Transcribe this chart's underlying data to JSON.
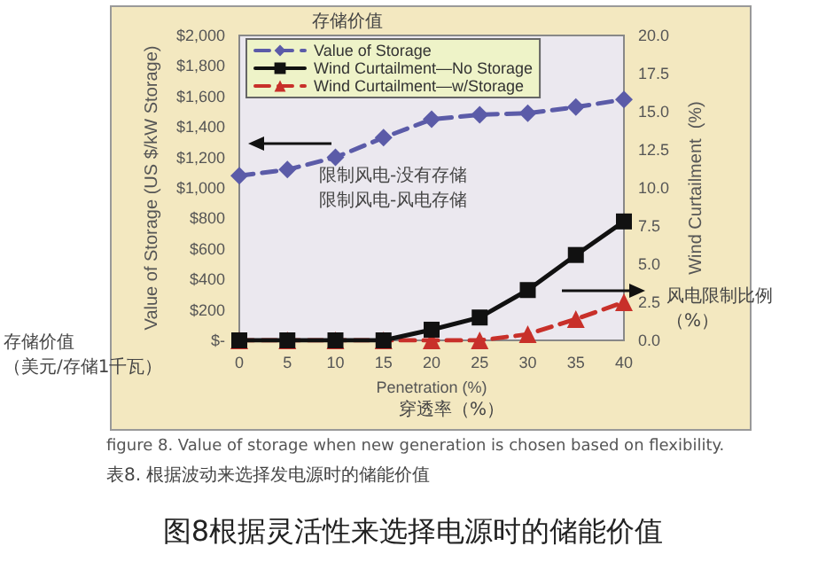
{
  "chart_data": {
    "type": "line",
    "xlabel": "Penetration (%)",
    "ylabel": "Value of Storage (US $/kW Storage)",
    "y2label": "Wind Curtailment  (%)",
    "x": [
      0,
      5,
      10,
      15,
      20,
      25,
      30,
      35,
      40
    ],
    "series": [
      {
        "name": "Value of Storage",
        "color": "#5b5ba8",
        "values": [
          1080,
          1120,
          1200,
          1330,
          1450,
          1480,
          1490,
          1530,
          1580
        ],
        "marker": "diamond",
        "line_style": "dashed"
      },
      {
        "name": "Wind Curtailment—No Storage",
        "color": "#111111",
        "values": [
          0,
          0,
          0,
          0,
          0.7,
          1.5,
          3.3,
          5.6,
          7.8
        ],
        "axis": "y2",
        "marker": "square",
        "line_style": "solid"
      },
      {
        "name": "Wind Curtailment—w/Storage",
        "color": "#c8302a",
        "values": [
          0,
          0,
          0,
          0,
          0,
          0,
          0.4,
          1.4,
          2.5
        ],
        "axis": "y2",
        "marker": "triangle",
        "line_style": "dashed"
      }
    ],
    "xlim": [
      0,
      40
    ],
    "xticks": [
      0,
      5,
      10,
      15,
      20,
      25,
      30,
      35,
      40
    ],
    "ylim": [
      0,
      2000
    ],
    "yticks": [
      {
        "value": 0,
        "label": "$-"
      },
      {
        "value": 200,
        "label": "$200"
      },
      {
        "value": 400,
        "label": "$400"
      },
      {
        "value": 600,
        "label": "$600"
      },
      {
        "value": 800,
        "label": "$800"
      },
      {
        "value": 1000,
        "label": "$1,000"
      },
      {
        "value": 1200,
        "label": "$1,200"
      },
      {
        "value": 1400,
        "label": "$1,400"
      },
      {
        "value": 1600,
        "label": "$1,600"
      },
      {
        "value": 1800,
        "label": "$1,800"
      },
      {
        "value": 2000,
        "label": "$2,000"
      }
    ],
    "y2lim": [
      0,
      20
    ],
    "y2ticks": [
      {
        "value": 0,
        "label": "0.0"
      },
      {
        "value": 2.5,
        "label": "2.5"
      },
      {
        "value": 5,
        "label": "5.0"
      },
      {
        "value": 7.5,
        "label": "7.5"
      },
      {
        "value": 10,
        "label": "10.0"
      },
      {
        "value": 12.5,
        "label": "12.5"
      },
      {
        "value": 15,
        "label": "15.0"
      },
      {
        "value": 17.5,
        "label": "17.5"
      },
      {
        "value": 20,
        "label": "20.0"
      }
    ],
    "grid": false,
    "legend": "top left",
    "annotations": [
      "存储价值",
      "限制风电-没有存储",
      "限制风电-风电存储",
      "风电限制比例（%）",
      "存储价值（美元/存储1千瓦）",
      "穿透率（%）",
      "figure 8. Value of storage when new generation is chosen based on flexibility.",
      "表8. 根据波动来选择发电源时的储能价值",
      "图8根据灵活性来选择电源时的储能价值"
    ]
  }
}
